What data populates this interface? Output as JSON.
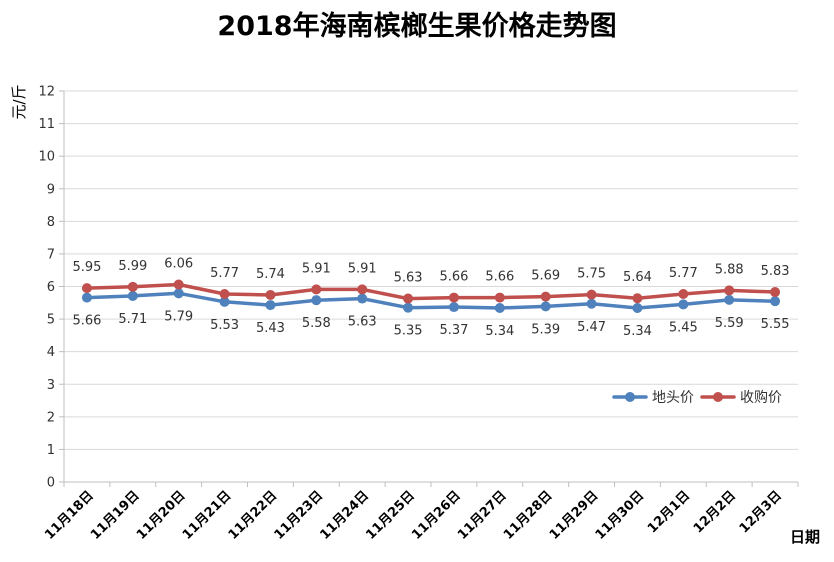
{
  "chart_data": {
    "type": "line",
    "title": "2018年海南槟榔生果价格走势图",
    "xlabel": "日期",
    "ylabel": "元/斤",
    "ylim": [
      0,
      12
    ],
    "ystep": 1,
    "grid": true,
    "legend_position": "right",
    "categories": [
      "11月18日",
      "11月19日",
      "11月20日",
      "11月21日",
      "11月22日",
      "11月23日",
      "11月24日",
      "11月25日",
      "11月26日",
      "11月27日",
      "11月28日",
      "11月29日",
      "11月30日",
      "12月1日",
      "12月2日",
      "12月3日"
    ],
    "series": [
      {
        "name": "地头价",
        "color": "#4f81bd",
        "label_position": "below",
        "values": [
          5.66,
          5.71,
          5.79,
          5.53,
          5.43,
          5.58,
          5.63,
          5.35,
          5.37,
          5.34,
          5.39,
          5.47,
          5.34,
          5.45,
          5.59,
          5.55
        ]
      },
      {
        "name": "收购价",
        "color": "#c0504d",
        "label_position": "above",
        "values": [
          5.95,
          5.99,
          6.06,
          5.77,
          5.74,
          5.91,
          5.91,
          5.63,
          5.66,
          5.66,
          5.69,
          5.75,
          5.64,
          5.77,
          5.88,
          5.83
        ]
      }
    ]
  }
}
